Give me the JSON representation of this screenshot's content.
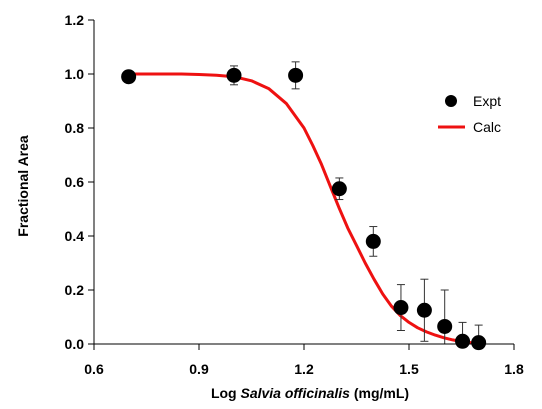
{
  "chart_data": {
    "type": "scatter",
    "xlabel_prefix": "Log ",
    "xlabel_italic": "Salvia officinalis",
    "xlabel_suffix": " (mg/mL)",
    "ylabel": "Fractional Area",
    "xlim": [
      0.6,
      1.8
    ],
    "ylim": [
      0.0,
      1.2
    ],
    "x_ticks": [
      "0.6",
      "0.9",
      "1.2",
      "1.5",
      "1.8"
    ],
    "y_ticks": [
      "0.0",
      "0.2",
      "0.4",
      "0.6",
      "0.8",
      "1.0",
      "1.2"
    ],
    "x_tick_values": [
      0.6,
      0.9,
      1.2,
      1.5,
      1.8
    ],
    "y_tick_values": [
      0.0,
      0.2,
      0.4,
      0.6,
      0.8,
      1.0,
      1.2
    ],
    "grid": false,
    "legend_position": "right",
    "series": [
      {
        "name": "Expt",
        "kind": "points",
        "color": "#000000",
        "x": [
          0.699,
          1.0,
          1.176,
          1.301,
          1.398,
          1.477,
          1.544,
          1.602,
          1.653,
          1.699
        ],
        "y": [
          0.99,
          0.995,
          0.995,
          0.575,
          0.38,
          0.135,
          0.125,
          0.065,
          0.01,
          0.005
        ],
        "err": [
          0.02,
          0.035,
          0.05,
          0.04,
          0.055,
          0.085,
          0.115,
          0.135,
          0.07,
          0.065
        ]
      },
      {
        "name": "Calc",
        "kind": "line",
        "color": "#ee1111",
        "x": [
          0.699,
          0.75,
          0.8,
          0.85,
          0.9,
          0.95,
          1.0,
          1.05,
          1.1,
          1.15,
          1.2,
          1.225,
          1.25,
          1.275,
          1.3,
          1.325,
          1.35,
          1.375,
          1.4,
          1.425,
          1.45,
          1.475,
          1.5,
          1.525,
          1.55,
          1.575,
          1.6,
          1.625,
          1.65,
          1.675,
          1.699
        ],
        "y": [
          1.0,
          1.0,
          1.0,
          1.0,
          0.998,
          0.995,
          0.99,
          0.975,
          0.945,
          0.89,
          0.8,
          0.735,
          0.665,
          0.585,
          0.505,
          0.43,
          0.365,
          0.3,
          0.24,
          0.185,
          0.14,
          0.105,
          0.08,
          0.06,
          0.045,
          0.033,
          0.023,
          0.015,
          0.009,
          0.005,
          0.002
        ]
      }
    ]
  }
}
